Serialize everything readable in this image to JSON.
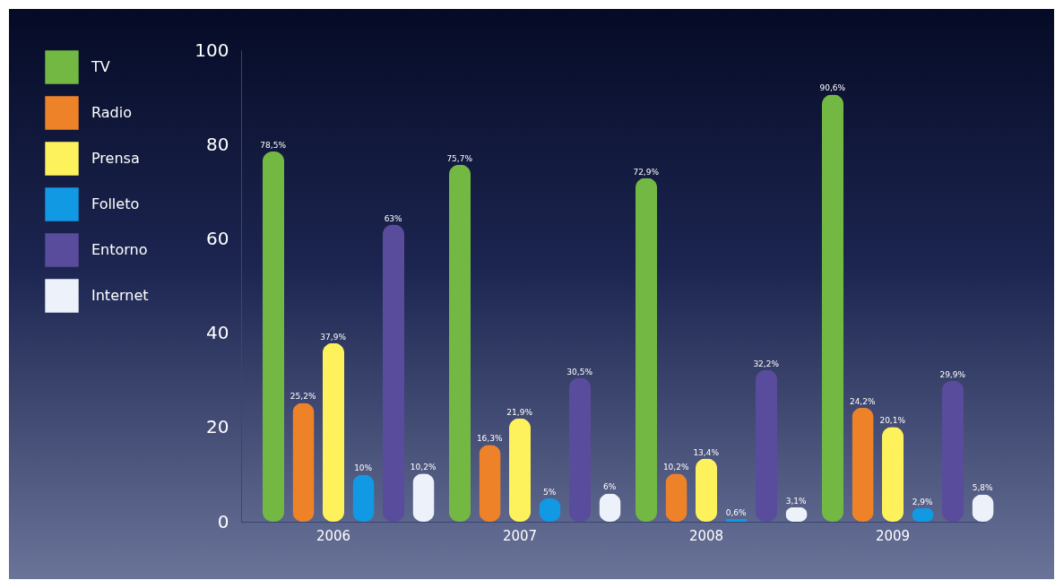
{
  "chart_data": {
    "type": "bar",
    "categories": [
      "2006",
      "2007",
      "2008",
      "2009"
    ],
    "series": [
      {
        "name": "TV",
        "color": "#72b843",
        "values": [
          78.5,
          75.7,
          72.9,
          90.6
        ],
        "value_labels": [
          "78,5%",
          "75,7%",
          "72,9%",
          "90,6%"
        ]
      },
      {
        "name": "Radio",
        "color": "#ee8229",
        "values": [
          25.2,
          16.3,
          10.2,
          24.2
        ],
        "value_labels": [
          "25,2%",
          "16,3%",
          "10,2%",
          "24,2%"
        ]
      },
      {
        "name": "Prensa",
        "color": "#fdf25c",
        "values": [
          37.9,
          21.9,
          13.4,
          20.1
        ],
        "value_labels": [
          "37,9%",
          "21,9%",
          "13,4%",
          "20,1%"
        ]
      },
      {
        "name": "Folleto",
        "color": "#1199e4",
        "values": [
          10,
          5,
          0.6,
          2.9
        ],
        "value_labels": [
          "10%",
          "5%",
          "0,6%",
          "2,9%"
        ]
      },
      {
        "name": "Entorno",
        "color": "#5a4c9c",
        "values": [
          63,
          30.5,
          32.2,
          29.9
        ],
        "value_labels": [
          "63%",
          "30,5%",
          "32,2%",
          "29,9%"
        ]
      },
      {
        "name": "Internet",
        "color": "#edf1f9",
        "values": [
          10.2,
          6,
          3.1,
          5.8
        ],
        "value_labels": [
          "10,2%",
          "6%",
          "3,1%",
          "5,8%"
        ]
      }
    ],
    "ylim": [
      0,
      100
    ],
    "yticks": [
      0,
      20,
      40,
      60,
      80,
      100
    ],
    "grid": false,
    "legend": "left"
  }
}
